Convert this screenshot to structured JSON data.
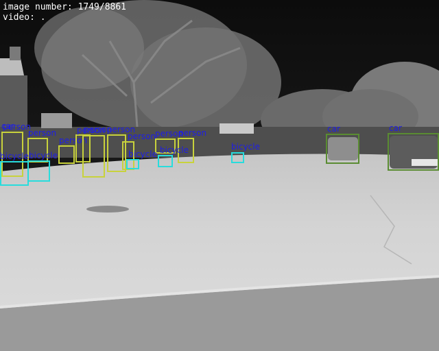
{
  "overlay": {
    "image_number_text": "image number: 1749/8861",
    "video_text": "video: ."
  },
  "colors": {
    "label_text": "#1e1ee6",
    "person_box": "#c8d23c",
    "bicycle_box": "#28dcdc",
    "car_box": "#5a8c32"
  },
  "detections": [
    {
      "label": "car",
      "class": "car"
    },
    {
      "label": "person",
      "class": "person"
    },
    {
      "label": "person",
      "class": "person"
    },
    {
      "label": "person",
      "class": "person"
    },
    {
      "label": "person",
      "class": "person"
    },
    {
      "label": "person",
      "class": "person"
    },
    {
      "label": "person",
      "class": "person"
    },
    {
      "label": "person",
      "class": "person"
    },
    {
      "label": "person",
      "class": "person"
    },
    {
      "label": "person",
      "class": "person"
    },
    {
      "label": "bicycle",
      "class": "bicycle"
    },
    {
      "label": "bicycle",
      "class": "bicycle"
    },
    {
      "label": "bicycle",
      "class": "bicycle"
    },
    {
      "label": "bicycle",
      "class": "bicycle"
    },
    {
      "label": "bicycle",
      "class": "bicycle"
    },
    {
      "label": "car",
      "class": "car"
    },
    {
      "label": "car",
      "class": "car"
    }
  ]
}
